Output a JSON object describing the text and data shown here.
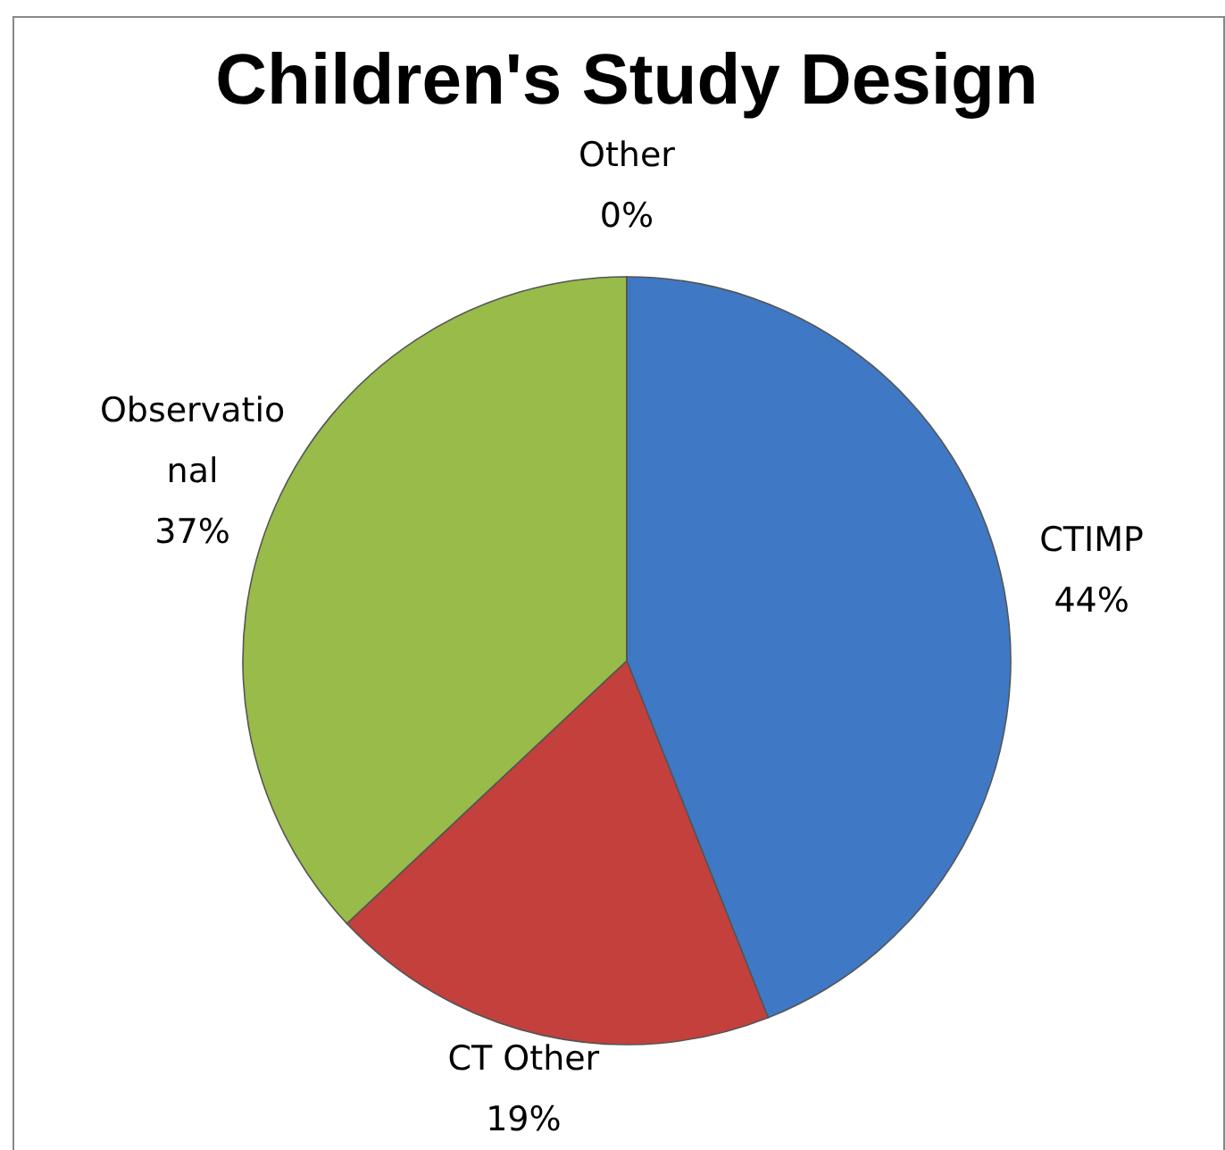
{
  "chart_data": {
    "type": "pie",
    "title": "Children's Study Design",
    "categories": [
      "CTIMP",
      "CT Other",
      "Observational",
      "Other"
    ],
    "values": [
      44,
      19,
      37,
      0
    ],
    "value_labels": [
      "44%",
      "19%",
      "37%",
      "0%"
    ],
    "colors": [
      "#3f78c4",
      "#c4403d",
      "#98bb4a",
      "#7f64a2"
    ]
  }
}
